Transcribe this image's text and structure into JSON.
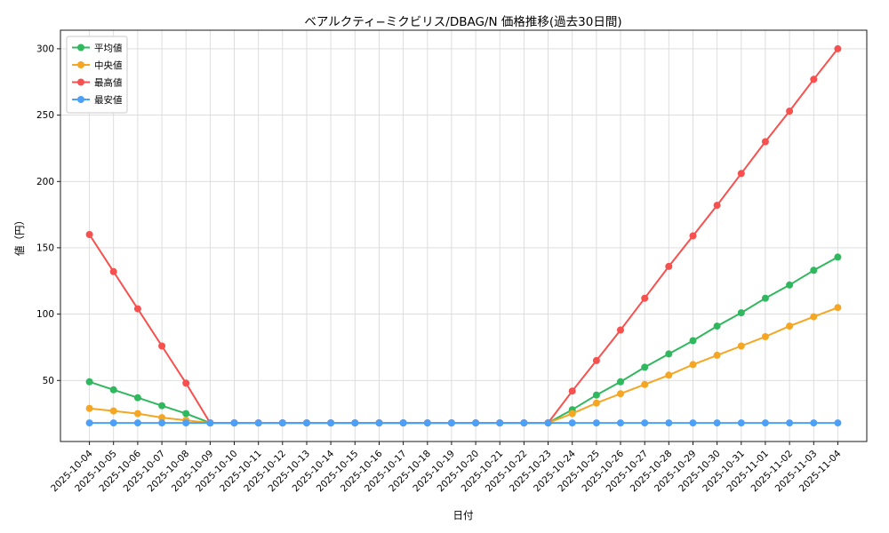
{
  "window": {
    "background": "#ffffff"
  },
  "chart_data": {
    "type": "line",
    "title": "ベアルクティ−ミクビリス/DBAG/N 価格推移(過去30日間)",
    "xlabel": "日付",
    "ylabel": "値（円）",
    "x": [
      "2025-10-04",
      "2025-10-05",
      "2025-10-06",
      "2025-10-07",
      "2025-10-08",
      "2025-10-09",
      "2025-10-10",
      "2025-10-11",
      "2025-10-12",
      "2025-10-13",
      "2025-10-14",
      "2025-10-15",
      "2025-10-16",
      "2025-10-17",
      "2025-10-18",
      "2025-10-19",
      "2025-10-20",
      "2025-10-21",
      "2025-10-22",
      "2025-10-23",
      "2025-10-24",
      "2025-10-25",
      "2025-10-26",
      "2025-10-27",
      "2025-10-28",
      "2025-10-29",
      "2025-10-30",
      "2025-10-31",
      "2025-11-01",
      "2025-11-02",
      "2025-11-03",
      "2025-11-04"
    ],
    "x_tick_rotation": 45,
    "yticks": [
      50,
      100,
      150,
      200,
      250,
      300
    ],
    "ylim": [
      4,
      314
    ],
    "grid": true,
    "legend_position": "upper-left",
    "series": [
      {
        "key": "mean",
        "name": "平均値",
        "color": "#2fb85e",
        "values": [
          49,
          43,
          37,
          31,
          25,
          18,
          18,
          18,
          18,
          18,
          18,
          18,
          18,
          18,
          18,
          18,
          18,
          18,
          18,
          18,
          28,
          39,
          49,
          60,
          70,
          80,
          91,
          101,
          112,
          122,
          133,
          143
        ]
      },
      {
        "key": "median",
        "name": "中央値",
        "color": "#f5a623",
        "values": [
          29,
          27,
          25,
          22,
          20,
          18,
          18,
          18,
          18,
          18,
          18,
          18,
          18,
          18,
          18,
          18,
          18,
          18,
          18,
          18,
          25,
          33,
          40,
          47,
          54,
          62,
          69,
          76,
          83,
          91,
          98,
          105
        ]
      },
      {
        "key": "max",
        "name": "最高値",
        "color": "#f7514f",
        "values": [
          160,
          132,
          104,
          76,
          48,
          18,
          18,
          18,
          18,
          18,
          18,
          18,
          18,
          18,
          18,
          18,
          18,
          18,
          18,
          18,
          42,
          65,
          88,
          112,
          136,
          159,
          182,
          206,
          230,
          253,
          277,
          300
        ]
      },
      {
        "key": "min",
        "name": "最安値",
        "color": "#4da0f7",
        "values": [
          18,
          18,
          18,
          18,
          18,
          18,
          18,
          18,
          18,
          18,
          18,
          18,
          18,
          18,
          18,
          18,
          18,
          18,
          18,
          18,
          18,
          18,
          18,
          18,
          18,
          18,
          18,
          18,
          18,
          18,
          18,
          18
        ]
      }
    ]
  }
}
